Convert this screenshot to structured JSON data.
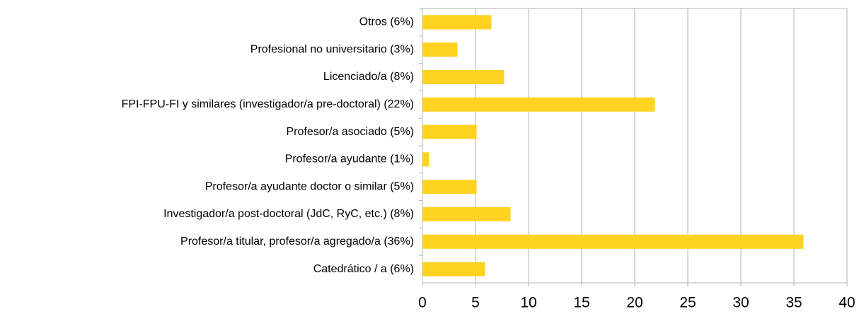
{
  "chart_data": {
    "type": "barh",
    "categories": [
      "Otros (6%)",
      "Profesional no universitario (3%)",
      "Licenciado/a (8%)",
      "FPI-FPU-FI y similares (investigador/a pre-doctoral) (22%)",
      "Profesor/a asociado (5%)",
      "Profesor/a ayudante (1%)",
      "Profesor/a ayudante doctor o similar (5%)",
      "Investigador/a post-doctoral (JdC, RyC, etc.) (8%)",
      "Profesor/a titular, profesor/a agregado/a (36%)",
      "Catedrático / a (6%)"
    ],
    "values": [
      6.5,
      3.3,
      7.7,
      21.9,
      5.1,
      0.6,
      5.1,
      8.3,
      35.9,
      5.9
    ],
    "color": "#ffd320",
    "xlim": [
      0,
      40
    ],
    "xticks": [
      0,
      5,
      10,
      15,
      20,
      25,
      30,
      35,
      40
    ],
    "grid": true
  }
}
